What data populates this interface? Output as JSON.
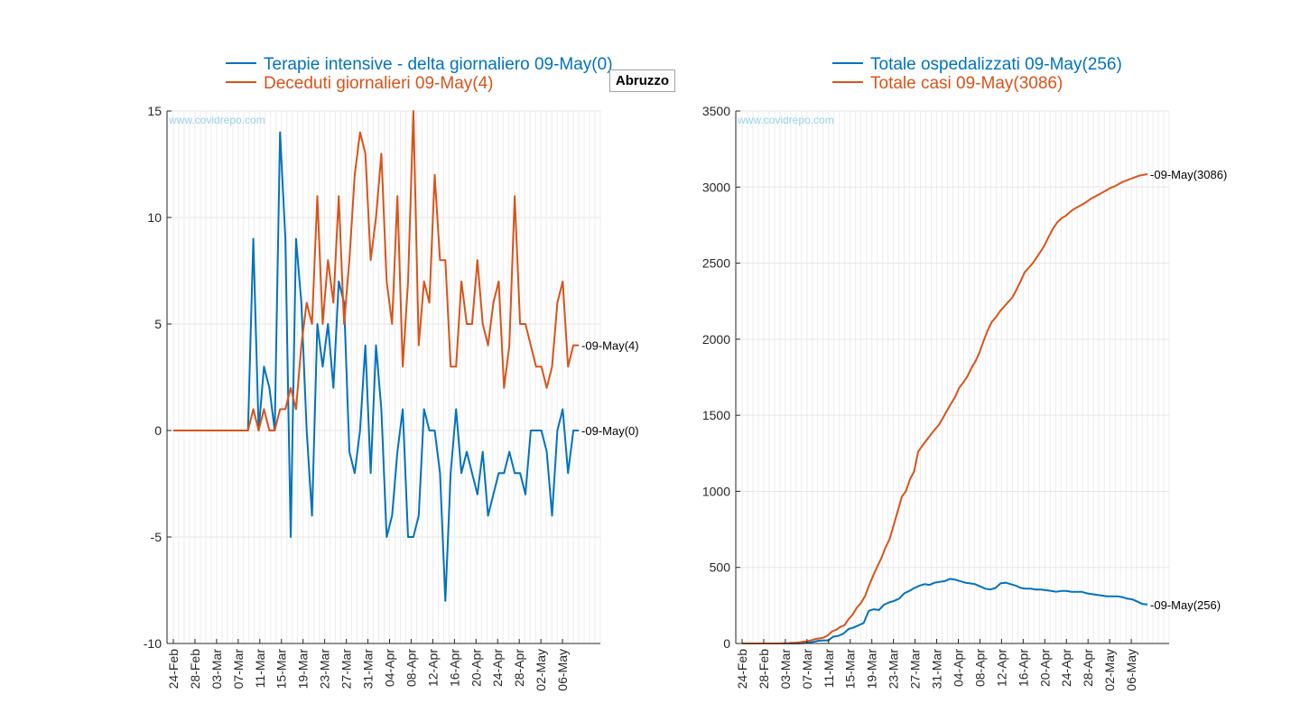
{
  "region": "Abruzzo",
  "watermark": "www.covidrepo.com",
  "colors": {
    "series1": "#0072BD",
    "series2": "#D95319",
    "grid": "#e6e6e6",
    "axis": "#262626"
  },
  "date_labels": [
    "24-Feb",
    "28-Feb",
    "03-Mar",
    "07-Mar",
    "11-Mar",
    "15-Mar",
    "19-Mar",
    "23-Mar",
    "27-Mar",
    "31-Mar",
    "04-Apr",
    "08-Apr",
    "12-Apr",
    "16-Apr",
    "20-Apr",
    "24-Apr",
    "28-Apr",
    "02-May",
    "06-May"
  ],
  "chart_data": [
    {
      "type": "line",
      "x_start": "24-Feb",
      "x_end": "09-May",
      "x_tick_step_days": 4,
      "ylim": [
        -10,
        15
      ],
      "yticks": [
        -10,
        -5,
        0,
        5,
        10,
        15
      ],
      "grid": true,
      "legend_position": "top",
      "series": [
        {
          "name": "Terapie intensive - delta giornaliero 09-May(0)",
          "color": "#0072BD",
          "end_label": "09-May(0)",
          "values": [
            0,
            0,
            0,
            0,
            0,
            0,
            0,
            0,
            0,
            0,
            0,
            0,
            0,
            0,
            0,
            9,
            0,
            3,
            2,
            0,
            14,
            9,
            -5,
            9,
            6,
            0,
            -4,
            5,
            3,
            5,
            2,
            7,
            6,
            -1,
            -2,
            0,
            4,
            -2,
            4,
            1,
            -5,
            -4,
            -1,
            1,
            -5,
            -5,
            -4,
            1,
            0,
            0,
            -2,
            -8,
            -2,
            1,
            -2,
            -1,
            -2,
            -3,
            -1,
            -4,
            -3,
            -2,
            -2,
            -1,
            -2,
            -2,
            -3,
            0,
            0,
            0,
            -1,
            -4,
            0,
            1,
            -2,
            0,
            0
          ]
        },
        {
          "name": "Deceduti giornalieri 09-May(4)",
          "color": "#D95319",
          "end_label": "09-May(4)",
          "values": [
            0,
            0,
            0,
            0,
            0,
            0,
            0,
            0,
            0,
            0,
            0,
            0,
            0,
            0,
            0,
            1,
            0,
            1,
            0,
            0,
            1,
            1,
            2,
            1,
            4,
            6,
            5,
            11,
            5,
            8,
            6,
            11,
            5,
            8,
            12,
            14,
            13,
            8,
            10,
            13,
            7,
            5,
            11,
            3,
            7,
            15,
            4,
            7,
            6,
            12,
            8,
            8,
            3,
            3,
            7,
            5,
            5,
            8,
            5,
            4,
            6,
            7,
            2,
            4,
            11,
            5,
            5,
            4,
            3,
            3,
            2,
            3,
            6,
            7,
            3,
            4,
            4
          ]
        }
      ]
    },
    {
      "type": "line",
      "x_start": "24-Feb",
      "x_end": "09-May",
      "x_tick_step_days": 4,
      "ylim": [
        0,
        3500
      ],
      "yticks": [
        0,
        500,
        1000,
        1500,
        2000,
        2500,
        3000,
        3500
      ],
      "grid": true,
      "legend_position": "top",
      "series": [
        {
          "name": "Totale ospedalizzati 09-May(256)",
          "color": "#0072BD",
          "end_label": "09-May(256)",
          "values": [
            0,
            0,
            0,
            0,
            0,
            0,
            0,
            0,
            0,
            0,
            0,
            0,
            2,
            5,
            10,
            18,
            20,
            20,
            45,
            50,
            65,
            95,
            105,
            120,
            135,
            215,
            225,
            220,
            255,
            270,
            280,
            295,
            330,
            345,
            365,
            380,
            390,
            385,
            400,
            405,
            410,
            425,
            420,
            410,
            400,
            395,
            390,
            375,
            360,
            355,
            365,
            395,
            400,
            390,
            380,
            365,
            360,
            360,
            355,
            355,
            350,
            345,
            340,
            345,
            345,
            340,
            340,
            340,
            330,
            325,
            320,
            315,
            310,
            310,
            310,
            305,
            295,
            290,
            275,
            260,
            256
          ]
        },
        {
          "name": "Totale casi 09-May(3086)",
          "color": "#D95319",
          "end_label": "09-May(3086)",
          "values": [
            0,
            0,
            0,
            0,
            0,
            0,
            0,
            0,
            0,
            0,
            1,
            2,
            5,
            5,
            8,
            12,
            15,
            22,
            30,
            33,
            40,
            55,
            80,
            90,
            110,
            120,
            160,
            190,
            235,
            265,
            310,
            380,
            445,
            505,
            560,
            630,
            685,
            775,
            870,
            965,
            1000,
            1080,
            1130,
            1260,
            1300,
            1335,
            1370,
            1405,
            1435,
            1480,
            1530,
            1575,
            1620,
            1680,
            1715,
            1755,
            1810,
            1855,
            1915,
            1990,
            2060,
            2115,
            2145,
            2185,
            2215,
            2245,
            2275,
            2325,
            2380,
            2440,
            2470,
            2500,
            2540,
            2580,
            2625,
            2680,
            2730,
            2770,
            2795,
            2810,
            2835,
            2855,
            2870,
            2885,
            2900,
            2920,
            2935,
            2950,
            2965,
            2980,
            2995,
            3005,
            3020,
            3035,
            3045,
            3055,
            3065,
            3075,
            3080,
            3086
          ]
        }
      ]
    }
  ]
}
